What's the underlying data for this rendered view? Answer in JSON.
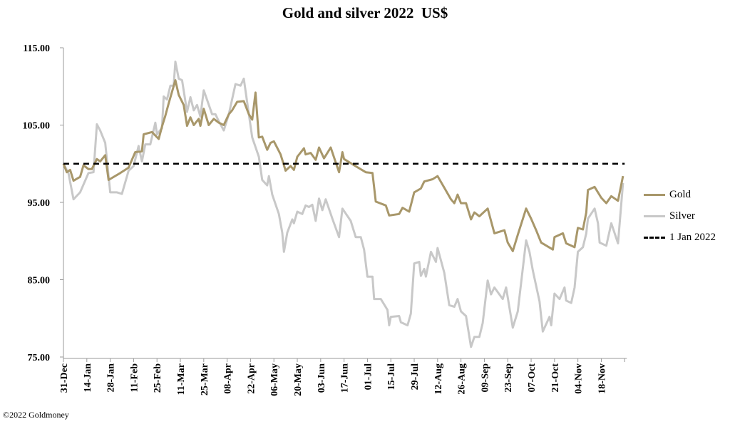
{
  "chart_data": {
    "type": "line",
    "title": "Gold and silver 2022  US$",
    "xlabel": "",
    "ylabel": "",
    "x_unit": "days since 31-Dec-2021",
    "xlim": [
      0,
      336
    ],
    "ylim": [
      75,
      115
    ],
    "y_ticks": [
      "75.00",
      "85.00",
      "95.00",
      "105.00",
      "115.00"
    ],
    "y_tick_values": [
      75,
      85,
      95,
      105,
      115
    ],
    "x_tick_labels": [
      "31-Dec",
      "14-Jan",
      "28-Jan",
      "11-Feb",
      "25-Feb",
      "11-Mar",
      "25-Mar",
      "08-Apr",
      "22-Apr",
      "06-May",
      "20-May",
      "03-Jun",
      "17-Jun",
      "01-Jul",
      "15-Jul",
      "29-Jul",
      "12-Aug",
      "26-Aug",
      "09-Sep",
      "23-Sep",
      "07-Oct",
      "21-Oct",
      "04-Nov",
      "18-Nov"
    ],
    "x_tick_step_days": 14,
    "grid": false,
    "legend_position": "right",
    "reference_line": {
      "name": "1 Jan 2022",
      "value": 100
    },
    "series": [
      {
        "name": "Gold",
        "color": "#A8976A",
        "points": [
          [
            0,
            100
          ],
          [
            2,
            98.9
          ],
          [
            4,
            99.2
          ],
          [
            6,
            97.8
          ],
          [
            10,
            98.3
          ],
          [
            12,
            99.8
          ],
          [
            15,
            99.3
          ],
          [
            17,
            99.3
          ],
          [
            20,
            100.6
          ],
          [
            22,
            100.3
          ],
          [
            25,
            101.1
          ],
          [
            27,
            97.9
          ],
          [
            34,
            98.8
          ],
          [
            39,
            99.5
          ],
          [
            43,
            101.5
          ],
          [
            47,
            101.6
          ],
          [
            48,
            103.8
          ],
          [
            53,
            104.1
          ],
          [
            57,
            103.2
          ],
          [
            59,
            104.8
          ],
          [
            61,
            106.2
          ],
          [
            63,
            107.8
          ],
          [
            67,
            110.8
          ],
          [
            69,
            108.9
          ],
          [
            72,
            107.6
          ],
          [
            74,
            104.9
          ],
          [
            76,
            106
          ],
          [
            78,
            105
          ],
          [
            81,
            105.8
          ],
          [
            82,
            104.9
          ],
          [
            84,
            107.1
          ],
          [
            87,
            105
          ],
          [
            90,
            105.8
          ],
          [
            93,
            105.3
          ],
          [
            96,
            105
          ],
          [
            99,
            106.4
          ],
          [
            101,
            106.9
          ],
          [
            104,
            108
          ],
          [
            108,
            108.1
          ],
          [
            111,
            106.4
          ],
          [
            113,
            105.7
          ],
          [
            115,
            109.2
          ],
          [
            117,
            103.4
          ],
          [
            119,
            103.5
          ],
          [
            122,
            101.8
          ],
          [
            124,
            102.7
          ],
          [
            126,
            102.9
          ],
          [
            130,
            101.2
          ],
          [
            133,
            99.1
          ],
          [
            136,
            99.7
          ],
          [
            138,
            99.2
          ],
          [
            140,
            100.9
          ],
          [
            144,
            102
          ],
          [
            145,
            101.2
          ],
          [
            148,
            101.4
          ],
          [
            151,
            100.5
          ],
          [
            153,
            102.1
          ],
          [
            156,
            100.7
          ],
          [
            160,
            102.1
          ],
          [
            165,
            98.9
          ],
          [
            167,
            101.5
          ],
          [
            168,
            100.6
          ],
          [
            174,
            99.8
          ],
          [
            181,
            98.9
          ],
          [
            185,
            98.8
          ],
          [
            187,
            95.1
          ],
          [
            193,
            94.6
          ],
          [
            195,
            93.3
          ],
          [
            201,
            93.5
          ],
          [
            203,
            94.3
          ],
          [
            207,
            93.8
          ],
          [
            210,
            96.3
          ],
          [
            214,
            96.8
          ],
          [
            216,
            97.7
          ],
          [
            221,
            98
          ],
          [
            224,
            98.4
          ],
          [
            228,
            96.9
          ],
          [
            232,
            95.4
          ],
          [
            234,
            94.9
          ],
          [
            236,
            96
          ],
          [
            238,
            94.9
          ],
          [
            241,
            94.9
          ],
          [
            244,
            92.8
          ],
          [
            246,
            93.7
          ],
          [
            249,
            93.2
          ],
          [
            254,
            94.2
          ],
          [
            258,
            91
          ],
          [
            264,
            91.4
          ],
          [
            266,
            89.8
          ],
          [
            269,
            88.7
          ],
          [
            272,
            90.8
          ],
          [
            277,
            94.2
          ],
          [
            280,
            92.9
          ],
          [
            283,
            91.4
          ],
          [
            286,
            89.8
          ],
          [
            293,
            88.9
          ],
          [
            294,
            90.5
          ],
          [
            299,
            91
          ],
          [
            301,
            89.7
          ],
          [
            306,
            89.2
          ],
          [
            308,
            91.7
          ],
          [
            311,
            91.5
          ],
          [
            313,
            93.7
          ],
          [
            314,
            96.6
          ],
          [
            318,
            97
          ],
          [
            322,
            95.6
          ],
          [
            325,
            94.9
          ],
          [
            328,
            95.8
          ],
          [
            332,
            95.2
          ],
          [
            335,
            98.4
          ]
        ]
      },
      {
        "name": "Silver",
        "color": "#C8C8C8",
        "points": [
          [
            0,
            100
          ],
          [
            3,
            98.8
          ],
          [
            6,
            95.4
          ],
          [
            10,
            96.3
          ],
          [
            15,
            98.8
          ],
          [
            18,
            98.9
          ],
          [
            20,
            105.1
          ],
          [
            22,
            104.3
          ],
          [
            25,
            102.7
          ],
          [
            28,
            96.3
          ],
          [
            32,
            96.3
          ],
          [
            35,
            96.1
          ],
          [
            39,
            99.1
          ],
          [
            42,
            99.7
          ],
          [
            45,
            102.3
          ],
          [
            47,
            100.3
          ],
          [
            49,
            102.5
          ],
          [
            52,
            102.5
          ],
          [
            55,
            105.3
          ],
          [
            56,
            103.8
          ],
          [
            59,
            104.6
          ],
          [
            60,
            108.7
          ],
          [
            62,
            108.3
          ],
          [
            64,
            110.1
          ],
          [
            66,
            110.1
          ],
          [
            67,
            113.2
          ],
          [
            69,
            111
          ],
          [
            71,
            110.8
          ],
          [
            74,
            106.7
          ],
          [
            76,
            108.6
          ],
          [
            78,
            106.9
          ],
          [
            80,
            107.6
          ],
          [
            82,
            106.1
          ],
          [
            84,
            109.5
          ],
          [
            89,
            106.4
          ],
          [
            91,
            106.4
          ],
          [
            93,
            105.5
          ],
          [
            96,
            104.3
          ],
          [
            99,
            106.4
          ],
          [
            103,
            110.3
          ],
          [
            106,
            110.1
          ],
          [
            108,
            111
          ],
          [
            111,
            106.4
          ],
          [
            113,
            103.4
          ],
          [
            117,
            100.9
          ],
          [
            119,
            97.9
          ],
          [
            122,
            97.2
          ],
          [
            123,
            98.4
          ],
          [
            125,
            96
          ],
          [
            129,
            93.5
          ],
          [
            131,
            91.1
          ],
          [
            132,
            88.6
          ],
          [
            134,
            91.1
          ],
          [
            137,
            92.8
          ],
          [
            138,
            92.3
          ],
          [
            140,
            93.8
          ],
          [
            143,
            93.5
          ],
          [
            145,
            94.6
          ],
          [
            147,
            94.4
          ],
          [
            149,
            94.7
          ],
          [
            151,
            92.6
          ],
          [
            153,
            95.5
          ],
          [
            155,
            94
          ],
          [
            157,
            95.4
          ],
          [
            161,
            92.9
          ],
          [
            165,
            90.5
          ],
          [
            167,
            94.2
          ],
          [
            172,
            92.6
          ],
          [
            175,
            90.5
          ],
          [
            178,
            90.5
          ],
          [
            180,
            88.9
          ],
          [
            182,
            85.4
          ],
          [
            185,
            85.4
          ],
          [
            186,
            82.5
          ],
          [
            190,
            82.5
          ],
          [
            194,
            81.1
          ],
          [
            195,
            79.1
          ],
          [
            196,
            80.2
          ],
          [
            201,
            80.3
          ],
          [
            202,
            79.5
          ],
          [
            206,
            79.1
          ],
          [
            208,
            80.6
          ],
          [
            210,
            87.1
          ],
          [
            213,
            87.3
          ],
          [
            214,
            85.5
          ],
          [
            216,
            86.4
          ],
          [
            217,
            85.4
          ],
          [
            220,
            88.6
          ],
          [
            223,
            87.3
          ],
          [
            224,
            89.1
          ],
          [
            228,
            85.9
          ],
          [
            231,
            81.7
          ],
          [
            234,
            81.5
          ],
          [
            236,
            82.5
          ],
          [
            238,
            80.9
          ],
          [
            241,
            80.3
          ],
          [
            244,
            76.3
          ],
          [
            246,
            77.6
          ],
          [
            249,
            77.6
          ],
          [
            251,
            79.4
          ],
          [
            254,
            84.9
          ],
          [
            256,
            83.1
          ],
          [
            258,
            84
          ],
          [
            263,
            82.5
          ],
          [
            265,
            84
          ],
          [
            269,
            78.8
          ],
          [
            272,
            80.9
          ],
          [
            277,
            90.1
          ],
          [
            279,
            88.6
          ],
          [
            281,
            86.2
          ],
          [
            285,
            82.2
          ],
          [
            287,
            78.3
          ],
          [
            291,
            80.2
          ],
          [
            292,
            79.1
          ],
          [
            294,
            83.2
          ],
          [
            297,
            82.5
          ],
          [
            300,
            84
          ],
          [
            301,
            82.3
          ],
          [
            304,
            82
          ],
          [
            306,
            84
          ],
          [
            308,
            88.6
          ],
          [
            311,
            89.2
          ],
          [
            313,
            91
          ],
          [
            314,
            92.9
          ],
          [
            318,
            94.2
          ],
          [
            320,
            92.3
          ],
          [
            321,
            89.8
          ],
          [
            325,
            89.4
          ],
          [
            328,
            92.3
          ],
          [
            332,
            89.7
          ],
          [
            335,
            97.5
          ]
        ]
      }
    ]
  },
  "legend": {
    "gold": "Gold",
    "silver": "Silver",
    "reference": "1 Jan 2022"
  },
  "footer": "©2022 Goldmoney"
}
